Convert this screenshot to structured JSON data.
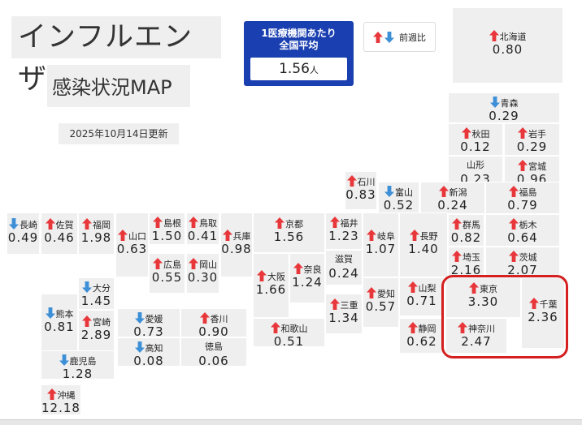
{
  "header": {
    "title": "インフルエンザ",
    "subtitle": "感染状況MAP",
    "updated": "2025年10月14日更新"
  },
  "average": {
    "label_line1": "1医療機関あたり",
    "label_line2": "全国平均",
    "value": "1.56",
    "unit": "人"
  },
  "legend": {
    "label": "前週比"
  },
  "colors": {
    "up": "#e8373a",
    "down": "#3d8fd6",
    "tile": "#efefef",
    "highlight": "#d42020",
    "avg_box": "#1a3fb0"
  },
  "prefectures": [
    {
      "name": "北海道",
      "value": "0.80",
      "trend": "up"
    },
    {
      "name": "青森",
      "value": "0.29",
      "trend": "down"
    },
    {
      "name": "秋田",
      "value": "0.12",
      "trend": "up"
    },
    {
      "name": "岩手",
      "value": "0.29",
      "trend": "up"
    },
    {
      "name": "山形",
      "value": "0.23",
      "trend": "none"
    },
    {
      "name": "宮城",
      "value": "0.96",
      "trend": "up"
    },
    {
      "name": "石川",
      "value": "0.83",
      "trend": "up"
    },
    {
      "name": "富山",
      "value": "0.52",
      "trend": "down"
    },
    {
      "name": "新潟",
      "value": "0.24",
      "trend": "up"
    },
    {
      "name": "福島",
      "value": "0.79",
      "trend": "up"
    },
    {
      "name": "群馬",
      "value": "0.82",
      "trend": "up"
    },
    {
      "name": "栃木",
      "value": "0.64",
      "trend": "up"
    },
    {
      "name": "長崎",
      "value": "0.49",
      "trend": "down"
    },
    {
      "name": "佐賀",
      "value": "0.46",
      "trend": "up"
    },
    {
      "name": "福岡",
      "value": "1.98",
      "trend": "up"
    },
    {
      "name": "山口",
      "value": "0.63",
      "trend": "up"
    },
    {
      "name": "島根",
      "value": "1.50",
      "trend": "up"
    },
    {
      "name": "鳥取",
      "value": "0.41",
      "trend": "up"
    },
    {
      "name": "兵庫",
      "value": "0.98",
      "trend": "up"
    },
    {
      "name": "京都",
      "value": "1.56",
      "trend": "up"
    },
    {
      "name": "福井",
      "value": "1.23",
      "trend": "up"
    },
    {
      "name": "岐阜",
      "value": "1.07",
      "trend": "up"
    },
    {
      "name": "長野",
      "value": "1.40",
      "trend": "up"
    },
    {
      "name": "埼玉",
      "value": "2.16",
      "trend": "up"
    },
    {
      "name": "茨城",
      "value": "2.07",
      "trend": "up"
    },
    {
      "name": "広島",
      "value": "0.55",
      "trend": "up"
    },
    {
      "name": "岡山",
      "value": "0.30",
      "trend": "up"
    },
    {
      "name": "大阪",
      "value": "1.66",
      "trend": "up"
    },
    {
      "name": "奈良",
      "value": "1.24",
      "trend": "up"
    },
    {
      "name": "滋賀",
      "value": "0.24",
      "trend": "none"
    },
    {
      "name": "愛知",
      "value": "0.57",
      "trend": "up"
    },
    {
      "name": "山梨",
      "value": "0.71",
      "trend": "up"
    },
    {
      "name": "東京",
      "value": "3.30",
      "trend": "up"
    },
    {
      "name": "千葉",
      "value": "2.36",
      "trend": "up"
    },
    {
      "name": "大分",
      "value": "1.45",
      "trend": "down"
    },
    {
      "name": "熊本",
      "value": "0.81",
      "trend": "down"
    },
    {
      "name": "宮崎",
      "value": "2.89",
      "trend": "up"
    },
    {
      "name": "愛媛",
      "value": "0.73",
      "trend": "down"
    },
    {
      "name": "香川",
      "value": "0.90",
      "trend": "up"
    },
    {
      "name": "高知",
      "value": "0.08",
      "trend": "down"
    },
    {
      "name": "徳島",
      "value": "0.06",
      "trend": "none"
    },
    {
      "name": "和歌山",
      "value": "0.51",
      "trend": "up"
    },
    {
      "name": "三重",
      "value": "1.34",
      "trend": "up"
    },
    {
      "name": "静岡",
      "value": "0.62",
      "trend": "up"
    },
    {
      "name": "神奈川",
      "value": "2.47",
      "trend": "up"
    },
    {
      "name": "鹿児島",
      "value": "1.28",
      "trend": "down"
    },
    {
      "name": "沖縄",
      "value": "12.18",
      "trend": "up"
    }
  ]
}
